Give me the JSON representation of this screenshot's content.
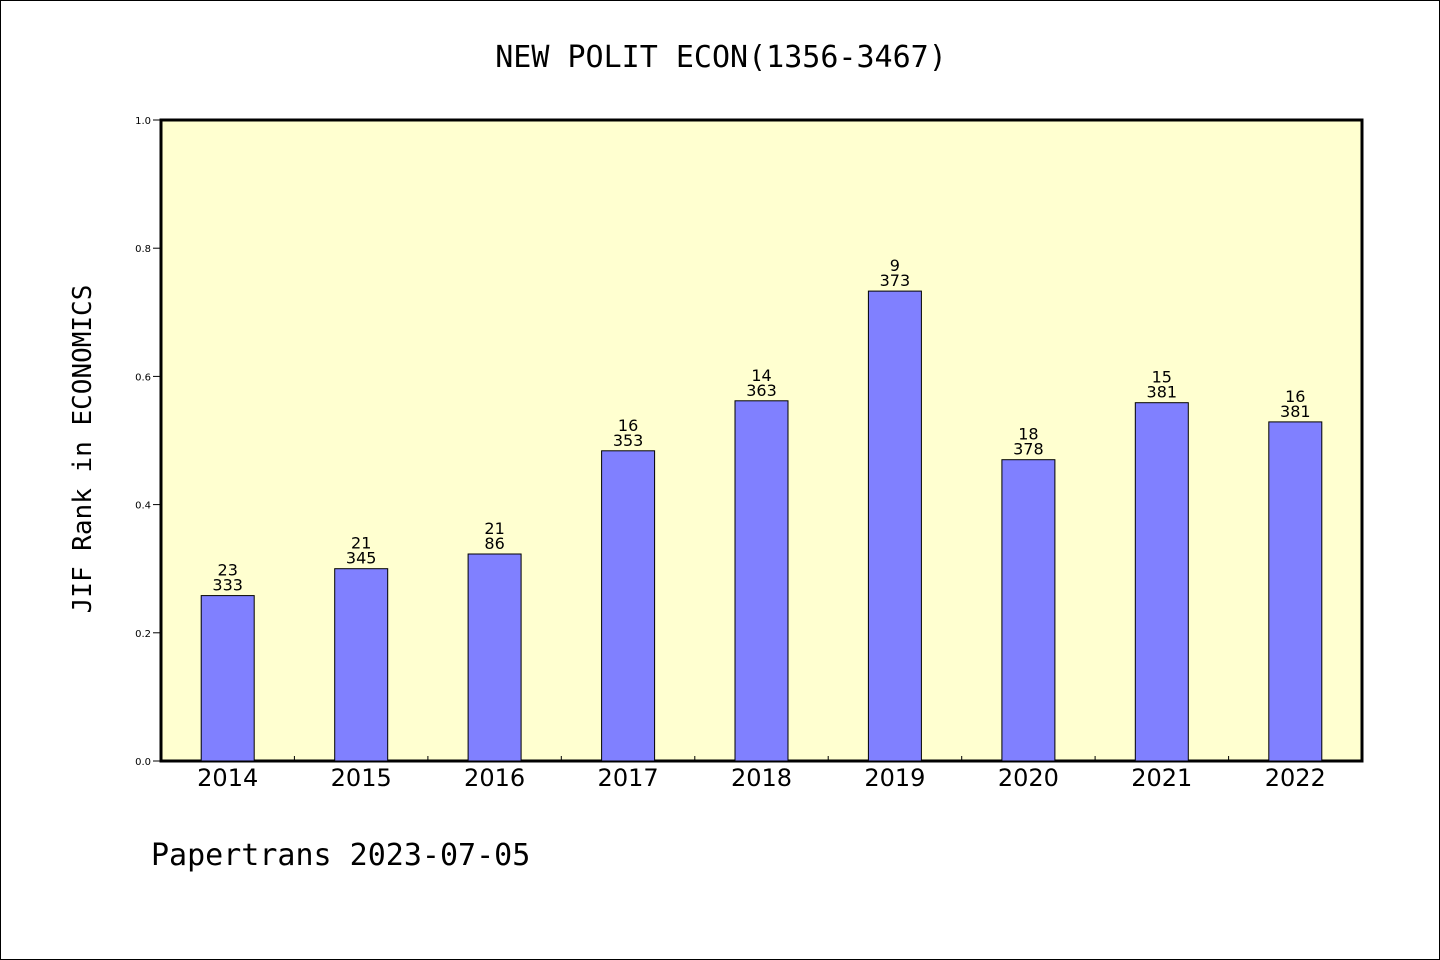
{
  "chart_data": {
    "type": "bar",
    "title": "NEW POLIT ECON(1356-3467)",
    "ylabel": "JIF Rank in ECONOMICS",
    "xlabel": "",
    "footer": "Papertrans 2023-07-05",
    "ylim": [
      0.0,
      1.0
    ],
    "yticks": [
      "0.0",
      "0.2",
      "0.4",
      "0.6",
      "0.8",
      "1.0"
    ],
    "yticks_values": [
      0.0,
      0.2,
      0.4,
      0.6,
      0.8,
      1.0
    ],
    "categories": [
      "2014",
      "2015",
      "2016",
      "2017",
      "2018",
      "2019",
      "2020",
      "2021",
      "2022"
    ],
    "values": [
      0.258,
      0.3,
      0.323,
      0.484,
      0.562,
      0.733,
      0.47,
      0.559,
      0.529
    ],
    "ranks": [
      "23",
      "21",
      "21",
      "16",
      "14",
      "9",
      "18",
      "15",
      "16"
    ],
    "totals": [
      "333",
      "345",
      "86",
      "353",
      "363",
      "373",
      "378",
      "381",
      "381"
    ],
    "grid": false,
    "legend": "none"
  },
  "colors": {
    "plot_background": "#ffffd0",
    "bar_fill": "#8080ff",
    "bar_stroke": "#000000",
    "axis": "#000000"
  }
}
